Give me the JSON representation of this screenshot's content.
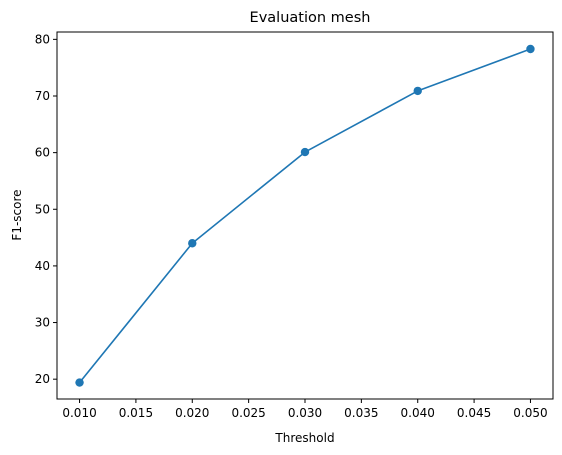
{
  "chart_data": {
    "type": "line",
    "title": "Evaluation mesh",
    "xlabel": "Threshold",
    "ylabel": "F1-score",
    "x": [
      0.01,
      0.02,
      0.03,
      0.04,
      0.05
    ],
    "series": [
      {
        "values": [
          19.4,
          44.0,
          60.1,
          70.9,
          78.3
        ],
        "color": "#1f77b4",
        "marker": "circle"
      }
    ],
    "xlim": [
      0.008,
      0.052
    ],
    "ylim": [
      16.5,
      81.3
    ],
    "xticks": [
      "0.010",
      "0.015",
      "0.020",
      "0.025",
      "0.030",
      "0.035",
      "0.040",
      "0.045",
      "0.050"
    ],
    "yticks": [
      "20",
      "30",
      "40",
      "50",
      "60",
      "70",
      "80"
    ],
    "grid": false,
    "legend": "none"
  }
}
